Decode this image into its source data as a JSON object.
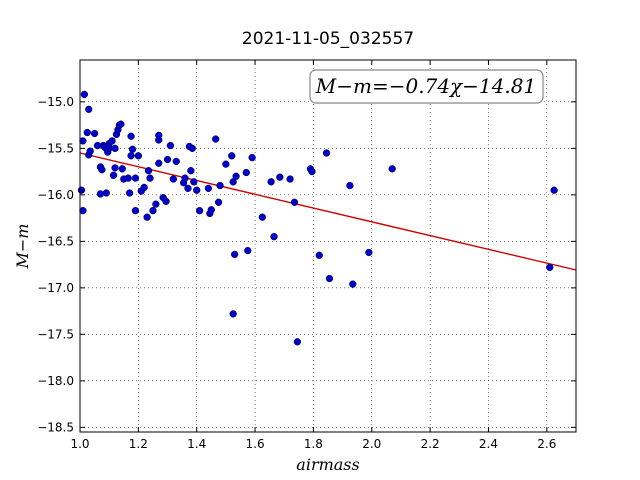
{
  "chart_data": {
    "type": "scatter",
    "title": "2021-11-05_032557",
    "xlabel": "airmass",
    "ylabel": "M−m",
    "xlim": [
      1.0,
      2.7
    ],
    "ylim": [
      -18.55,
      -14.55
    ],
    "xticks": [
      "1.0",
      "1.2",
      "1.4",
      "1.6",
      "1.8",
      "2.0",
      "2.2",
      "2.4",
      "2.6"
    ],
    "xtick_values": [
      1.0,
      1.2,
      1.4,
      1.6,
      1.8,
      2.0,
      2.2,
      2.4,
      2.6
    ],
    "yticks": [
      "−15.0",
      "−15.5",
      "−16.0",
      "−16.5",
      "−17.0",
      "−17.5",
      "−18.0",
      "−18.5"
    ],
    "ytick_values": [
      -15.0,
      -15.5,
      -16.0,
      -16.5,
      -17.0,
      -17.5,
      -18.0,
      -18.5
    ],
    "grid": true,
    "annotation": "M−m=−0.74χ−14.81",
    "annotation_placement": "top-right",
    "fit": {
      "slope": -0.74,
      "intercept": -14.81,
      "color": "#cc0000"
    },
    "point_color": "#0000cc",
    "points": [
      [
        1.005,
        -15.95
      ],
      [
        1.01,
        -15.42
      ],
      [
        1.01,
        -16.17
      ],
      [
        1.015,
        -14.92
      ],
      [
        1.025,
        -15.33
      ],
      [
        1.03,
        -15.08
      ],
      [
        1.03,
        -15.57
      ],
      [
        1.035,
        -15.53
      ],
      [
        1.05,
        -15.34
      ],
      [
        1.06,
        -15.47
      ],
      [
        1.07,
        -15.99
      ],
      [
        1.07,
        -15.7
      ],
      [
        1.075,
        -15.73
      ],
      [
        1.08,
        -15.47
      ],
      [
        1.085,
        -15.49
      ],
      [
        1.09,
        -15.98
      ],
      [
        1.095,
        -15.54
      ],
      [
        1.1,
        -15.5
      ],
      [
        1.1,
        -15.45
      ],
      [
        1.11,
        -15.42
      ],
      [
        1.115,
        -15.79
      ],
      [
        1.12,
        -15.71
      ],
      [
        1.12,
        -15.5
      ],
      [
        1.125,
        -15.35
      ],
      [
        1.13,
        -15.3
      ],
      [
        1.135,
        -15.25
      ],
      [
        1.14,
        -15.24
      ],
      [
        1.145,
        -15.72
      ],
      [
        1.15,
        -15.83
      ],
      [
        1.165,
        -15.82
      ],
      [
        1.17,
        -15.98
      ],
      [
        1.175,
        -15.58
      ],
      [
        1.175,
        -15.37
      ],
      [
        1.18,
        -15.51
      ],
      [
        1.19,
        -15.82
      ],
      [
        1.19,
        -16.17
      ],
      [
        1.2,
        -15.58
      ],
      [
        1.21,
        -15.96
      ],
      [
        1.22,
        -15.92
      ],
      [
        1.23,
        -16.24
      ],
      [
        1.235,
        -15.74
      ],
      [
        1.24,
        -15.82
      ],
      [
        1.25,
        -16.17
      ],
      [
        1.26,
        -16.1
      ],
      [
        1.27,
        -15.66
      ],
      [
        1.27,
        -15.41
      ],
      [
        1.27,
        -15.36
      ],
      [
        1.285,
        -16.03
      ],
      [
        1.295,
        -16.07
      ],
      [
        1.3,
        -15.62
      ],
      [
        1.31,
        -15.47
      ],
      [
        1.32,
        -15.83
      ],
      [
        1.33,
        -15.64
      ],
      [
        1.355,
        -15.87
      ],
      [
        1.36,
        -15.82
      ],
      [
        1.37,
        -15.93
      ],
      [
        1.375,
        -15.48
      ],
      [
        1.38,
        -15.74
      ],
      [
        1.385,
        -15.5
      ],
      [
        1.39,
        -15.86
      ],
      [
        1.4,
        -15.95
      ],
      [
        1.41,
        -16.17
      ],
      [
        1.44,
        -15.93
      ],
      [
        1.445,
        -16.2
      ],
      [
        1.45,
        -16.16
      ],
      [
        1.465,
        -15.4
      ],
      [
        1.475,
        -16.08
      ],
      [
        1.48,
        -15.9
      ],
      [
        1.5,
        -15.67
      ],
      [
        1.52,
        -15.58
      ],
      [
        1.525,
        -15.86
      ],
      [
        1.525,
        -17.28
      ],
      [
        1.53,
        -16.64
      ],
      [
        1.535,
        -15.8
      ],
      [
        1.57,
        -15.76
      ],
      [
        1.575,
        -16.6
      ],
      [
        1.59,
        -15.6
      ],
      [
        1.625,
        -16.24
      ],
      [
        1.655,
        -15.86
      ],
      [
        1.665,
        -16.45
      ],
      [
        1.685,
        -15.81
      ],
      [
        1.72,
        -15.83
      ],
      [
        1.735,
        -16.08
      ],
      [
        1.745,
        -17.58
      ],
      [
        1.79,
        -15.72
      ],
      [
        1.795,
        -15.75
      ],
      [
        1.82,
        -16.65
      ],
      [
        1.845,
        -15.55
      ],
      [
        1.855,
        -16.9
      ],
      [
        1.925,
        -15.9
      ],
      [
        1.935,
        -16.96
      ],
      [
        1.99,
        -16.62
      ],
      [
        2.07,
        -15.72
      ],
      [
        2.61,
        -16.78
      ],
      [
        2.625,
        -15.95
      ]
    ]
  }
}
